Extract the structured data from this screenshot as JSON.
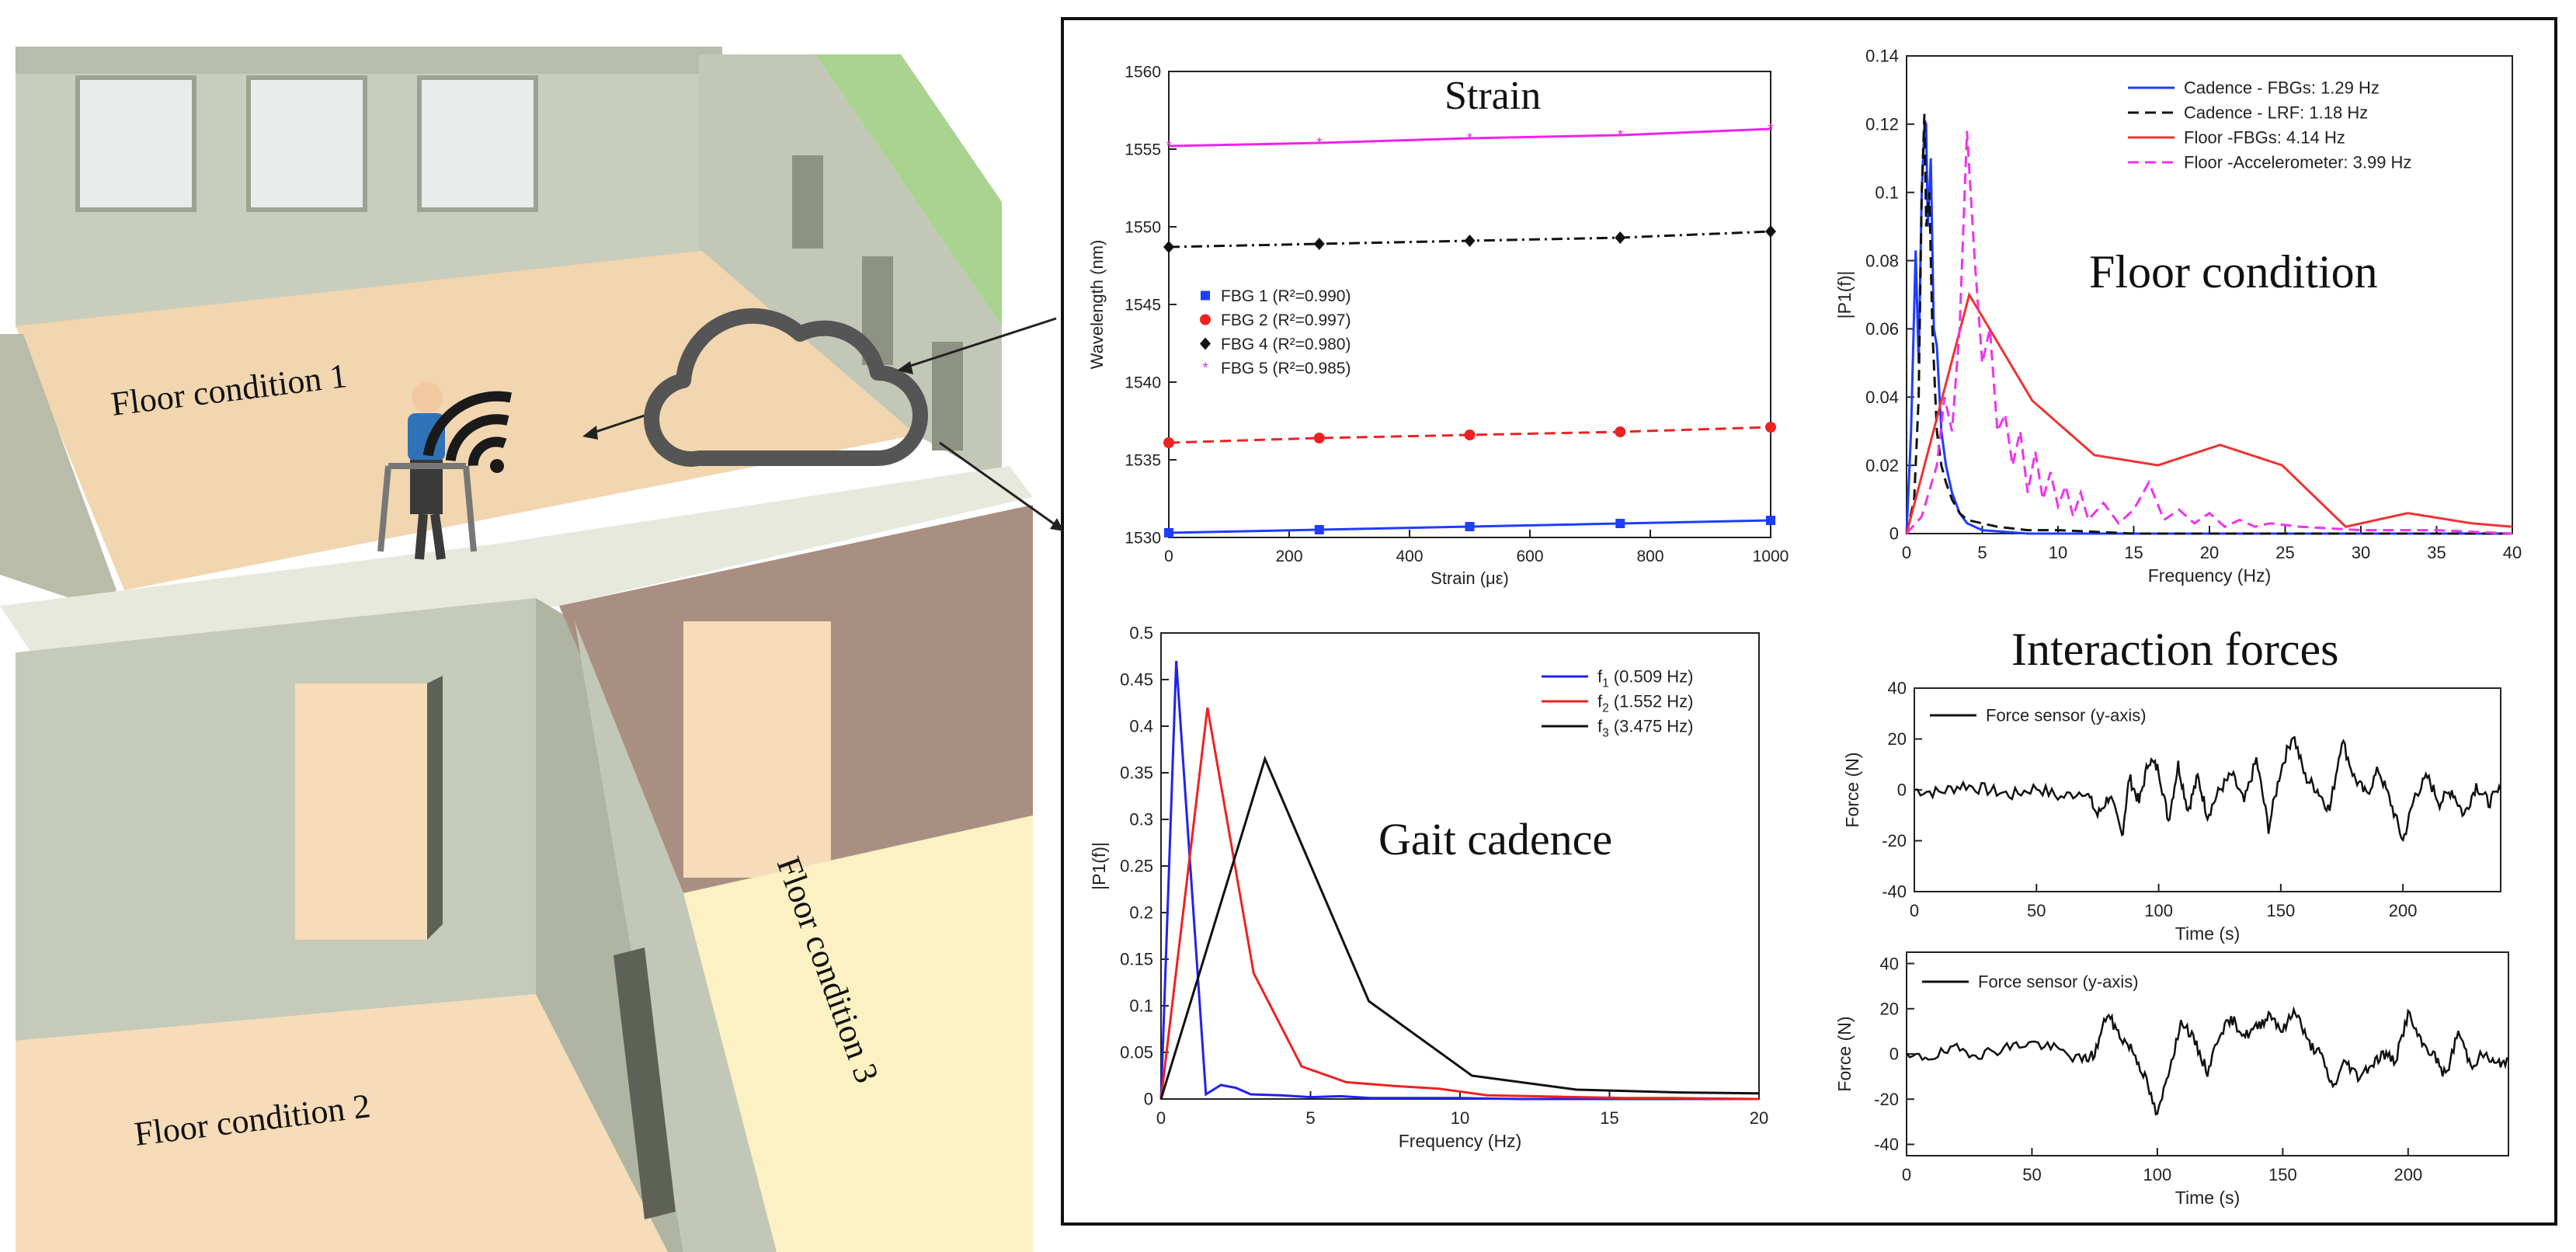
{
  "scene": {
    "labels": {
      "floor1": "Floor condition 1",
      "floor2": "Floor condition 2",
      "floor3": "Floor condition 3"
    },
    "icons": [
      "walker-user-icon",
      "wifi-signal-icon",
      "cloud-icon"
    ],
    "colors": {
      "wall": "#c7ccbc",
      "wall_dark": "#9ea293",
      "floor1": "#f1d6b0",
      "floor2": "#f6dcb8",
      "floor3": "#fbf1c3",
      "room_dark": "#a88f82",
      "accent_green": "#a9d38f"
    }
  },
  "chart_data": [
    {
      "id": "strain",
      "type": "line",
      "title": "Strain",
      "xlabel": "Strain (με)",
      "ylabel": "Wavelength (nm)",
      "xlim": [
        0,
        1000
      ],
      "ylim": [
        1530,
        1560
      ],
      "xticks": [
        0,
        200,
        400,
        600,
        800,
        1000
      ],
      "yticks": [
        1530,
        1535,
        1540,
        1545,
        1550,
        1555,
        1560
      ],
      "x": [
        0,
        250,
        500,
        750,
        1000
      ],
      "legend_position": "middle-left",
      "series": [
        {
          "name": "FBG 1 (R²=0.990)",
          "color": "#1f3cff",
          "marker": "square",
          "dash": "solid",
          "values": [
            1530.3,
            1530.5,
            1530.7,
            1530.9,
            1531.1
          ]
        },
        {
          "name": "FBG 2 (R²=0.997)",
          "color": "#ee2222",
          "marker": "circle",
          "dash": "dashed",
          "values": [
            1536.1,
            1536.4,
            1536.6,
            1536.8,
            1537.1
          ]
        },
        {
          "name": "FBG 4 (R²=0.980)",
          "color": "#111111",
          "marker": "diamond",
          "dash": "dashdot",
          "values": [
            1548.7,
            1548.9,
            1549.1,
            1549.3,
            1549.7
          ]
        },
        {
          "name": "FBG 5 (R²=0.985)",
          "color": "#ee22ee",
          "marker": "star",
          "dash": "solid",
          "values": [
            1555.2,
            1555.4,
            1555.7,
            1555.9,
            1556.3
          ]
        }
      ]
    },
    {
      "id": "floor",
      "type": "line",
      "title": "Floor condition",
      "xlabel": "Frequency (Hz)",
      "ylabel": "|P1(f)|",
      "xlim": [
        0,
        40
      ],
      "ylim": [
        0,
        0.14
      ],
      "xticks": [
        0,
        5,
        10,
        15,
        20,
        25,
        30,
        35,
        40
      ],
      "yticks": [
        0,
        0.02,
        0.04,
        0.06,
        0.08,
        0.1,
        0.12,
        0.14
      ],
      "legend_position": "top-right",
      "series": [
        {
          "name": "Cadence - FBGs: 1.29 Hz",
          "color": "#1f3cff",
          "dash": "solid",
          "x": [
            0,
            0.3,
            0.6,
            0.8,
            1.0,
            1.2,
            1.29,
            1.4,
            1.6,
            1.8,
            2.0,
            2.3,
            2.6,
            3.0,
            3.5,
            4,
            5,
            8,
            15,
            40
          ],
          "values": [
            0,
            0.03,
            0.083,
            0.05,
            0.1,
            0.121,
            0.12,
            0.09,
            0.11,
            0.06,
            0.055,
            0.03,
            0.02,
            0.012,
            0.006,
            0.003,
            0.001,
            0,
            0,
            0
          ]
        },
        {
          "name": "Cadence - LRF: 1.18 Hz",
          "color": "#111111",
          "dash": "dashed",
          "x": [
            0,
            0.5,
            0.8,
            1.0,
            1.18,
            1.3,
            1.5,
            1.7,
            2.0,
            2.3,
            2.6,
            3.0,
            3.5,
            4,
            5,
            6,
            8,
            10,
            15,
            40
          ],
          "values": [
            0,
            0.01,
            0.04,
            0.1,
            0.123,
            0.09,
            0.1,
            0.06,
            0.03,
            0.02,
            0.015,
            0.01,
            0.006,
            0.004,
            0.003,
            0.002,
            0.001,
            0.001,
            0,
            0
          ]
        },
        {
          "name": "Floor -FBGs: 4.14 Hz",
          "color": "#ee3333",
          "dash": "solid",
          "x": [
            0,
            4.14,
            8.3,
            12.4,
            16.6,
            20.7,
            24.8,
            29.0,
            33.1,
            37.3,
            40
          ],
          "values": [
            0,
            0.07,
            0.039,
            0.023,
            0.02,
            0.026,
            0.02,
            0.002,
            0.006,
            0.003,
            0.002
          ]
        },
        {
          "name": "Floor -Accelerometer: 3.99 Hz",
          "color": "#ee33ee",
          "dash": "dashed",
          "x": [
            0,
            1,
            2,
            2.5,
            3,
            3.5,
            3.99,
            4.5,
            5,
            5.5,
            6,
            6.5,
            7,
            7.5,
            8,
            8.5,
            9,
            9.5,
            10,
            10.5,
            11,
            11.5,
            12,
            13,
            14,
            15,
            16,
            17,
            18,
            19,
            20,
            21,
            22,
            23,
            24,
            26,
            30,
            35,
            40
          ],
          "values": [
            0,
            0.005,
            0.02,
            0.04,
            0.03,
            0.06,
            0.118,
            0.08,
            0.05,
            0.06,
            0.03,
            0.035,
            0.02,
            0.03,
            0.012,
            0.024,
            0.01,
            0.018,
            0.008,
            0.014,
            0.005,
            0.012,
            0.004,
            0.009,
            0.003,
            0.007,
            0.015,
            0.004,
            0.007,
            0.003,
            0.006,
            0.002,
            0.004,
            0.002,
            0.003,
            0.002,
            0.001,
            0.001,
            0
          ]
        }
      ]
    },
    {
      "id": "gait",
      "type": "line",
      "title": "Gait cadence",
      "xlabel": "Frequency (Hz)",
      "ylabel": "|P1(f)|",
      "xlim": [
        0,
        20
      ],
      "ylim": [
        0,
        0.5
      ],
      "xticks": [
        0,
        5,
        10,
        15,
        20
      ],
      "yticks": [
        0,
        0.05,
        0.1,
        0.15,
        0.2,
        0.25,
        0.3,
        0.35,
        0.4,
        0.45,
        0.5
      ],
      "legend_position": "top-right",
      "series": [
        {
          "name": "f1 (0.509 Hz)",
          "label_base": "f",
          "label_sub": "1",
          "label_rest": " (0.509 Hz)",
          "color": "#2222ee",
          "x": [
            0,
            0.509,
            1.5,
            2,
            2.5,
            3,
            4,
            5,
            6,
            7,
            8,
            9,
            10,
            12,
            15,
            20
          ],
          "values": [
            0,
            0.47,
            0.005,
            0.015,
            0.012,
            0.005,
            0.004,
            0.002,
            0.003,
            0.001,
            0.001,
            0.001,
            0.001,
            0,
            0,
            0
          ]
        },
        {
          "name": "f2 (1.552 Hz)",
          "label_base": "f",
          "label_sub": "2",
          "label_rest": " (1.552 Hz)",
          "color": "#ee2222",
          "x": [
            0,
            1.552,
            3.1,
            4.7,
            6.2,
            7.8,
            9.3,
            10.9,
            12.4,
            14,
            15.5,
            17.1,
            20
          ],
          "values": [
            0,
            0.42,
            0.135,
            0.035,
            0.018,
            0.014,
            0.011,
            0.004,
            0.003,
            0.002,
            0.001,
            0.001,
            0
          ]
        },
        {
          "name": "f3 (3.475 Hz)",
          "label_base": "f",
          "label_sub": "3",
          "label_rest": " (3.475 Hz)",
          "color": "#111111",
          "x": [
            0,
            3.475,
            6.95,
            10.4,
            13.9,
            17.4,
            20
          ],
          "values": [
            0,
            0.365,
            0.105,
            0.025,
            0.01,
            0.007,
            0.006
          ]
        }
      ]
    },
    {
      "id": "force1",
      "type": "line",
      "title": "Interaction forces",
      "xlabel": "Time (s)",
      "ylabel": "Force (N)",
      "xlim": [
        0,
        240
      ],
      "ylim": [
        -40,
        40
      ],
      "xticks": [
        0,
        50,
        100,
        150,
        200
      ],
      "yticks": [
        -40,
        -20,
        0,
        20,
        40
      ],
      "legend_position": "top-left",
      "series": [
        {
          "name": "Force sensor (y-axis)",
          "color": "#111111",
          "noise": 2.5,
          "seed": 7,
          "x": [
            0,
            10,
            20,
            30,
            40,
            50,
            60,
            70,
            75,
            80,
            85,
            88,
            92,
            96,
            100,
            104,
            108,
            112,
            116,
            120,
            125,
            130,
            135,
            140,
            145,
            150,
            155,
            160,
            165,
            170,
            175,
            180,
            185,
            190,
            195,
            200,
            205,
            210,
            215,
            220,
            225,
            230,
            235,
            240
          ],
          "values": [
            0,
            -1,
            2,
            0,
            -2,
            1,
            -3,
            0,
            -10,
            -2,
            -18,
            5,
            -5,
            12,
            8,
            -12,
            10,
            -8,
            5,
            -10,
            0,
            6,
            -5,
            12,
            -15,
            8,
            22,
            5,
            0,
            -8,
            20,
            5,
            -2,
            8,
            -5,
            -20,
            -2,
            5,
            -5,
            0,
            -10,
            2,
            -5,
            0
          ]
        }
      ]
    },
    {
      "id": "force2",
      "type": "line",
      "title": "",
      "xlabel": "Time (s)",
      "ylabel": "Force (N)",
      "xlim": [
        0,
        240
      ],
      "ylim": [
        -45,
        45
      ],
      "xticks": [
        0,
        50,
        100,
        150,
        200
      ],
      "yticks": [
        -40,
        -20,
        0,
        20,
        40
      ],
      "legend_position": "top-left",
      "series": [
        {
          "name": "Force sensor (y-axis)",
          "color": "#111111",
          "noise": 2.5,
          "seed": 19,
          "x": [
            0,
            10,
            20,
            30,
            40,
            50,
            60,
            70,
            75,
            80,
            85,
            90,
            95,
            100,
            105,
            110,
            115,
            120,
            125,
            130,
            135,
            140,
            145,
            150,
            155,
            160,
            165,
            170,
            175,
            180,
            185,
            190,
            195,
            200,
            205,
            210,
            215,
            220,
            225,
            230,
            235,
            240
          ],
          "values": [
            -2,
            -1,
            2,
            0,
            3,
            5,
            2,
            -3,
            0,
            18,
            8,
            2,
            -10,
            -28,
            -5,
            15,
            5,
            -8,
            10,
            15,
            8,
            12,
            18,
            10,
            20,
            5,
            0,
            -15,
            -3,
            -10,
            -5,
            0,
            -3,
            18,
            5,
            0,
            -10,
            10,
            -5,
            0,
            -5,
            -2
          ]
        }
      ]
    }
  ]
}
